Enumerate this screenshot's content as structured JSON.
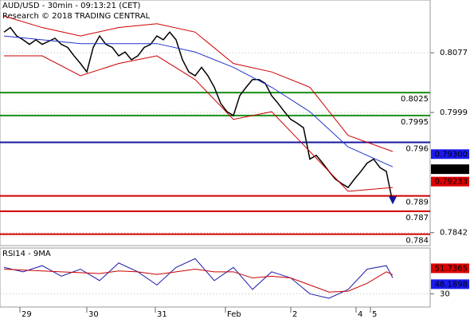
{
  "chart_data": [
    {
      "type": "line",
      "title": "AUD/USD - 30min - 09:13:21 (CET)",
      "subtitle": "Research © 2018 TRADING CENTRAL",
      "xlim": [
        0,
        66
      ],
      "ylim": [
        0.7825,
        0.8146
      ],
      "yticks": [
        0.8077,
        0.7999,
        0.7842
      ],
      "xticks": [
        {
          "value": 2.5,
          "label": "29"
        },
        {
          "value": 13,
          "label": "30"
        },
        {
          "value": 23.75,
          "label": "31"
        },
        {
          "value": 34.75,
          "label": "Feb"
        },
        {
          "value": 45,
          "label": "2"
        },
        {
          "value": 55.25,
          "label": "4"
        },
        {
          "value": 57.5,
          "label": "5"
        }
      ],
      "x": [
        0,
        1,
        2,
        3,
        4,
        5,
        6,
        7,
        8,
        9,
        10,
        11,
        12,
        13,
        14,
        15,
        16,
        17,
        18,
        19,
        20,
        21,
        22,
        23,
        24,
        25,
        26,
        27,
        28,
        29,
        30,
        31,
        32,
        33,
        34,
        35,
        36,
        37,
        38,
        39,
        40,
        41,
        42,
        43,
        44,
        45,
        46,
        47,
        48,
        49,
        50,
        51,
        52,
        53,
        54,
        55,
        56,
        57,
        58,
        59,
        60,
        61
      ],
      "series": [
        {
          "color": "#000000",
          "values": [
            0.8104,
            0.811,
            0.8099,
            0.8094,
            0.8088,
            0.8094,
            0.8088,
            0.8092,
            0.8096,
            0.8088,
            0.8084,
            0.8073,
            0.8063,
            0.8052,
            0.8084,
            0.8099,
            0.8088,
            0.8084,
            0.8073,
            0.8078,
            0.8068,
            0.8073,
            0.8084,
            0.8088,
            0.8099,
            0.8094,
            0.8104,
            0.8094,
            0.8068,
            0.8052,
            0.8047,
            0.8058,
            0.8047,
            0.8032,
            0.8011,
            0.8,
            0.7995,
            0.8021,
            0.8032,
            0.8042,
            0.8042,
            0.8037,
            0.8021,
            0.8011,
            0.8,
            0.799,
            0.7985,
            0.7979,
            0.7938,
            0.7943,
            0.7933,
            0.7922,
            0.7912,
            0.7906,
            0.7901,
            0.7912,
            0.7922,
            0.7933,
            0.7938,
            0.7927,
            0.7922,
            0.7881
          ]
        },
        {
          "color": "#2233cc",
          "x": [
            0,
            6,
            12,
            18,
            24,
            30,
            36,
            42,
            48,
            54,
            61
          ],
          "values": [
            0.8099,
            0.8094,
            0.8089,
            0.8089,
            0.8089,
            0.8078,
            0.8058,
            0.8032,
            0.8,
            0.7954,
            0.7928
          ]
        },
        {
          "color": "#cc0000",
          "x": [
            0,
            6,
            12,
            18,
            24,
            30,
            36,
            42,
            48,
            54,
            61
          ],
          "values": [
            0.8125,
            0.811,
            0.8099,
            0.811,
            0.8115,
            0.8104,
            0.8063,
            0.8052,
            0.8032,
            0.7969,
            0.7948
          ]
        },
        {
          "color": "#cc0000",
          "x": [
            0,
            6,
            12,
            18,
            24,
            30,
            36,
            42,
            48,
            54,
            61
          ],
          "values": [
            0.8073,
            0.8073,
            0.8047,
            0.8063,
            0.8073,
            0.8042,
            0.799,
            0.8,
            0.7948,
            0.7896,
            0.7901
          ]
        }
      ],
      "levels": [
        {
          "value": 0.8025,
          "color": "#1a8f1a"
        },
        {
          "value": 0.7995,
          "color": "#1a8f1a"
        },
        {
          "value": 0.796,
          "color": "#1515a0"
        },
        {
          "value": 0.789,
          "color": "#d00000"
        },
        {
          "value": 0.787,
          "color": "#d00000"
        },
        {
          "value": 0.784,
          "color": "#d00000"
        }
      ],
      "markers": [
        {
          "value": 0.793,
          "label": "0.79300",
          "color": "#1a1aee"
        },
        {
          "value": 0.79249,
          "label": "0.79249",
          "color": "#000000"
        },
        {
          "value": 0.79233,
          "label": "0.79233",
          "color": "#dd0000"
        }
      ]
    },
    {
      "type": "line",
      "title": "RSI14 - 9MA",
      "xlim": [
        0,
        66
      ],
      "ylim": [
        15,
        82
      ],
      "yticks": [
        30
      ],
      "x": [
        0,
        3,
        6,
        9,
        12,
        15,
        18,
        21,
        24,
        27,
        30,
        33,
        36,
        39,
        42,
        45,
        48,
        51,
        54,
        57,
        60,
        61
      ],
      "series": [
        {
          "color": "#1a1aaa",
          "values": [
            60,
            55,
            62,
            50,
            58,
            45,
            65,
            55,
            40,
            60,
            70,
            45,
            60,
            35,
            55,
            48,
            30,
            25,
            35,
            58,
            62,
            48.1898
          ]
        },
        {
          "color": "#cc0000",
          "values": [
            58,
            57,
            56,
            55,
            54,
            53,
            56,
            55,
            52,
            55,
            58,
            55,
            55,
            48,
            50,
            48,
            40,
            32,
            33,
            42,
            55,
            51.7365
          ]
        }
      ],
      "markers": [
        {
          "value": 51.7365,
          "color": "#dd0000"
        },
        {
          "value": 48.1898,
          "color": "#1a1aee"
        }
      ]
    }
  ]
}
